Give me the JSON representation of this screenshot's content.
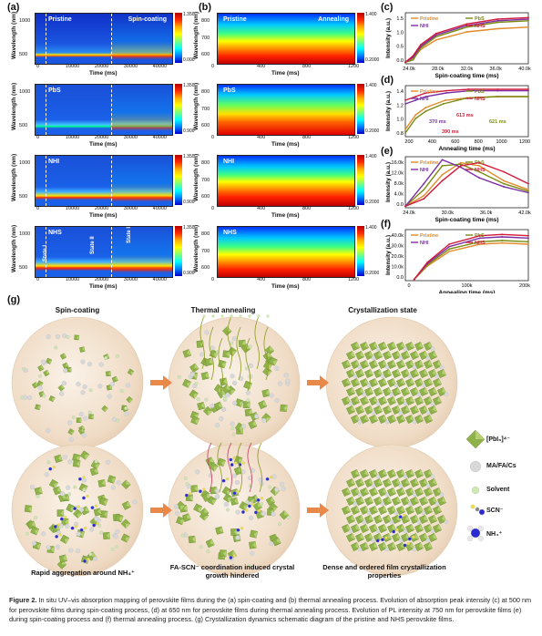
{
  "panels": {
    "a": "(a)",
    "b": "(b)",
    "c": "(c)",
    "d": "(d)",
    "e": "(e)",
    "f": "(f)",
    "g": "(g)"
  },
  "heatmaps_a": {
    "ylabel": "Wavelength (nm)",
    "xlabel": "Time (ms)",
    "yticks": [
      "1000",
      "500"
    ],
    "xticks": [
      "0",
      "10000",
      "20000",
      "30000",
      "40000"
    ],
    "rows": [
      {
        "label": "Pristine",
        "extra": "Spin-coating",
        "cb_max": "1.350",
        "cb_min": "0.000"
      },
      {
        "label": "PbS",
        "extra": "",
        "cb_max": "1.350",
        "cb_min": "0.900"
      },
      {
        "label": "NHI",
        "extra": "",
        "cb_max": "1.350",
        "cb_min": "0.900"
      },
      {
        "label": "NHS",
        "extra": "",
        "cb_max": "1.350",
        "cb_min": "0.900",
        "states": [
          "State I",
          "State II",
          "State III"
        ]
      }
    ]
  },
  "heatmaps_b": {
    "ylabel": "Wavelength (nm)",
    "xlabel": "Time (ms)",
    "yticks": [
      "800",
      "700",
      "600"
    ],
    "xticks": [
      "0",
      "400",
      "800",
      "1200"
    ],
    "rows": [
      {
        "label": "Pristine",
        "extra": "Annealing",
        "cb_max": "1.400",
        "cb_min": "0.2000"
      },
      {
        "label": "PbS",
        "extra": "",
        "cb_max": "1.400",
        "cb_min": "0.2000"
      },
      {
        "label": "NHI",
        "extra": "",
        "cb_max": "1.400",
        "cb_min": "0.2000"
      },
      {
        "label": "NHS",
        "extra": "",
        "cb_max": "1.400",
        "cb_min": "0.2000"
      }
    ]
  },
  "chart_data": [
    {
      "id": "c",
      "type": "line",
      "xlabel": "Spin-coating time (ms)",
      "ylabel": "Intensity (a.u.)",
      "xticks": [
        "24.0k",
        "28.0k",
        "32.0k",
        "36.0k",
        "40.0k"
      ],
      "yticks": [
        "1.5",
        "1.0",
        "0.5",
        "0.0"
      ],
      "xlim": [
        24000,
        40000
      ],
      "ylim": [
        0,
        1.6
      ],
      "legend": [
        "Pristine",
        "PbS",
        "NHI",
        "NHS"
      ],
      "series": [
        {
          "name": "Pristine",
          "color": "#e08a2a",
          "x": [
            24000,
            25000,
            26000,
            28000,
            32000,
            36000,
            40000
          ],
          "y": [
            0.05,
            0.15,
            0.45,
            0.75,
            1.0,
            1.1,
            1.15
          ]
        },
        {
          "name": "PbS",
          "color": "#7a8a10",
          "x": [
            24000,
            25000,
            26000,
            28000,
            32000,
            36000,
            40000
          ],
          "y": [
            0.05,
            0.12,
            0.5,
            0.85,
            1.15,
            1.3,
            1.35
          ]
        },
        {
          "name": "NHI",
          "color": "#7b2fa3",
          "x": [
            24000,
            25000,
            26000,
            28000,
            32000,
            36000,
            40000
          ],
          "y": [
            0.05,
            0.2,
            0.55,
            0.9,
            1.2,
            1.35,
            1.4
          ]
        },
        {
          "name": "NHS",
          "color": "#d11a3a",
          "x": [
            24000,
            25000,
            26000,
            28000,
            32000,
            36000,
            40000
          ],
          "y": [
            0.05,
            0.25,
            0.6,
            0.95,
            1.25,
            1.4,
            1.45
          ]
        }
      ]
    },
    {
      "id": "d",
      "type": "line",
      "xlabel": "Annealing time (ms)",
      "ylabel": "Intensity (a.u.)",
      "xticks": [
        "200",
        "400",
        "600",
        "800",
        "1000",
        "1200"
      ],
      "yticks": [
        "1.4",
        "1.2",
        "1.0",
        "0.8"
      ],
      "xlim": [
        0,
        1200
      ],
      "ylim": [
        0.75,
        1.45
      ],
      "legend": [
        "Pristine",
        "PbS",
        "NHI",
        "NHS"
      ],
      "annotations": [
        "613 ms",
        "621 ms",
        "370 ms",
        "390 ms"
      ],
      "series": [
        {
          "name": "Pristine",
          "color": "#e08a2a",
          "x": [
            0,
            100,
            200,
            390,
            600,
            900,
            1200
          ],
          "y": [
            0.85,
            1.05,
            1.15,
            1.25,
            1.28,
            1.3,
            1.3
          ]
        },
        {
          "name": "PbS",
          "color": "#7a8a10",
          "x": [
            0,
            100,
            200,
            370,
            600,
            900,
            1200
          ],
          "y": [
            0.8,
            1.0,
            1.1,
            1.2,
            1.28,
            1.3,
            1.3
          ]
        },
        {
          "name": "NHI",
          "color": "#7b2fa3",
          "x": [
            0,
            100,
            200,
            400,
            621,
            900,
            1200
          ],
          "y": [
            1.2,
            1.25,
            1.3,
            1.35,
            1.38,
            1.38,
            1.38
          ]
        },
        {
          "name": "NHS",
          "color": "#d11a3a",
          "x": [
            0,
            100,
            200,
            400,
            613,
            900,
            1200
          ],
          "y": [
            1.25,
            1.3,
            1.35,
            1.38,
            1.4,
            1.4,
            1.4
          ]
        }
      ]
    },
    {
      "id": "e",
      "type": "line",
      "xlabel": "Spin-coating time (ms)",
      "ylabel": "Intensity (a.u.)",
      "xticks": [
        "24.0k",
        "30.0k",
        "36.0k",
        "42.0k"
      ],
      "yticks": [
        "16.0k",
        "12.0k",
        "8.0k",
        "4.0k",
        "0.0"
      ],
      "xlim": [
        24000,
        44000
      ],
      "ylim": [
        0,
        17000
      ],
      "legend": [
        "Pristine",
        "PbS",
        "NHI",
        "NHS"
      ],
      "series": [
        {
          "name": "Pristine",
          "color": "#e08a2a",
          "x": [
            24000,
            27000,
            30000,
            33000,
            36000,
            40000,
            44000
          ],
          "y": [
            500,
            4000,
            11000,
            15000,
            14000,
            9000,
            6000
          ]
        },
        {
          "name": "PbS",
          "color": "#7a8a10",
          "x": [
            24000,
            27000,
            30000,
            33000,
            36000,
            40000,
            44000
          ],
          "y": [
            500,
            6000,
            14000,
            14500,
            12000,
            8000,
            5500
          ]
        },
        {
          "name": "NHI",
          "color": "#7b2fa3",
          "x": [
            24000,
            27000,
            30000,
            33000,
            36000,
            40000,
            44000
          ],
          "y": [
            500,
            8000,
            16000,
            13500,
            10000,
            7000,
            5000
          ]
        },
        {
          "name": "NHS",
          "color": "#d11a3a",
          "x": [
            24000,
            27000,
            30000,
            33000,
            36000,
            40000,
            44000
          ],
          "y": [
            500,
            3000,
            9000,
            14000,
            15000,
            12000,
            8000
          ]
        }
      ]
    },
    {
      "id": "f",
      "type": "line",
      "xlabel": "Annealing time (ms)",
      "ylabel": "Intensity (a.u.)",
      "xticks": [
        "0",
        "100k",
        "200k"
      ],
      "yticks": [
        "40.0k",
        "30.0k",
        "20.0k",
        "10.0k",
        "0.0"
      ],
      "xlim": [
        -20000,
        260000
      ],
      "ylim": [
        0,
        42000
      ],
      "legend": [
        "Pristine",
        "PbS",
        "NHI",
        "NHS"
      ],
      "series": [
        {
          "name": "Pristine",
          "color": "#e08a2a",
          "x": [
            0,
            30000,
            80000,
            150000,
            200000,
            260000
          ],
          "y": [
            1000,
            12000,
            24000,
            30000,
            31000,
            30000
          ]
        },
        {
          "name": "PbS",
          "color": "#7a8a10",
          "x": [
            0,
            30000,
            80000,
            150000,
            200000,
            260000
          ],
          "y": [
            1000,
            13000,
            26000,
            32000,
            33000,
            32000
          ]
        },
        {
          "name": "NHI",
          "color": "#7b2fa3",
          "x": [
            0,
            30000,
            80000,
            150000,
            200000,
            260000
          ],
          "y": [
            1000,
            14000,
            28000,
            35000,
            36000,
            35000
          ]
        },
        {
          "name": "NHS",
          "color": "#d11a3a",
          "x": [
            0,
            30000,
            80000,
            150000,
            200000,
            260000
          ],
          "y": [
            1000,
            15000,
            30000,
            37000,
            38000,
            37000
          ]
        }
      ]
    }
  ],
  "scheme": {
    "titles": [
      "Spin-coating",
      "Thermal annealing",
      "Crystallization state"
    ],
    "bottom_captions": [
      "Rapid aggregation around NH₄⁺",
      "FA-SCN⁻ coordination induced crystal growth hindered",
      "Dense and ordered film crystallization properties"
    ],
    "legend": [
      "[PbI₆]⁴⁻",
      "MA/FA/Cs",
      "Solvent",
      "SCN⁻",
      "NH₄⁺"
    ]
  },
  "caption": {
    "label": "Figure 2.",
    "text": "In situ UV–vis absorption mapping of perovskite films during the (a) spin-coating and (b) thermal annealing process. Evolution of absorption peak intensity (c) at 500 nm for perovskite films during spin-coating process, (d) at 650 nm for perovskite films during thermal annealing process. Evolution of PL intensity at 750 nm for perovskite films (e) during spin-coating process and (f) thermal annealing process. (g) Crystallization dynamics schematic diagram of the pristine and NHS perovskite films."
  },
  "colors": {
    "pristine": "#e08a2a",
    "pbs": "#7a8a10",
    "nhi": "#7b2fa3",
    "nhs": "#d11a3a",
    "arrow": "#e8894a"
  }
}
